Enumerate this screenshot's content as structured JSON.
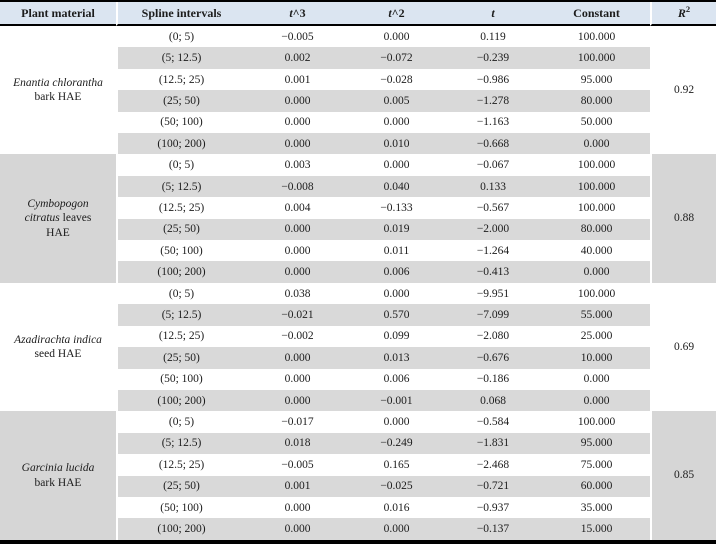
{
  "colors": {
    "header_bg": "#dbe5f1",
    "stripe_bg": "#d9d9d9",
    "section_bg": "#d6d6d6",
    "border": "#000000"
  },
  "header": {
    "col_plant": "Plant material",
    "col_spline": "Spline intervals",
    "col_t3_italic": "t",
    "col_t3_rest": "^3",
    "col_t2_italic": "t",
    "col_t2_rest": "^2",
    "col_t_italic": "t",
    "col_constant": "Constant",
    "col_r2_italic": "R",
    "col_r2_sup": "2"
  },
  "chart_data": {
    "type": "table",
    "title": "Spline interval polynomial coefficients per plant material",
    "columns": [
      "Plant material",
      "Spline intervals",
      "t^3",
      "t^2",
      "t",
      "Constant",
      "R2"
    ],
    "sections": [
      {
        "plant_italic": "Enantia chlorantha",
        "plant_rest": " bark HAE",
        "r2": "0.92",
        "rows": [
          [
            "(0; 5)",
            "−0.005",
            "0.000",
            "0.119",
            "100.000"
          ],
          [
            "(5; 12.5)",
            "0.002",
            "−0.072",
            "−0.239",
            "100.000"
          ],
          [
            "(12.5; 25)",
            "0.001",
            "−0.028",
            "−0.986",
            "95.000"
          ],
          [
            "(25; 50)",
            "0.000",
            "0.005",
            "−1.278",
            "80.000"
          ],
          [
            "(50; 100)",
            "0.000",
            "0.000",
            "−1.163",
            "50.000"
          ],
          [
            "(100; 200)",
            "0.000",
            "0.010",
            "−0.668",
            "0.000"
          ]
        ]
      },
      {
        "plant_italic": "Cymbopogon citratus",
        "plant_rest": " leaves HAE",
        "r2": "0.88",
        "rows": [
          [
            "(0; 5)",
            "0.003",
            "0.000",
            "−0.067",
            "100.000"
          ],
          [
            "(5; 12.5)",
            "−0.008",
            "0.040",
            "0.133",
            "100.000"
          ],
          [
            "(12.5; 25)",
            "0.004",
            "−0.133",
            "−0.567",
            "100.000"
          ],
          [
            "(25; 50)",
            "0.000",
            "0.019",
            "−2.000",
            "80.000"
          ],
          [
            "(50; 100)",
            "0.000",
            "0.011",
            "−1.264",
            "40.000"
          ],
          [
            "(100; 200)",
            "0.000",
            "0.006",
            "−0.413",
            "0.000"
          ]
        ]
      },
      {
        "plant_italic": "Azadirachta indica",
        "plant_rest": " seed HAE",
        "r2": "0.69",
        "rows": [
          [
            "(0; 5)",
            "0.038",
            "0.000",
            "−9.951",
            "100.000"
          ],
          [
            "(5; 12.5)",
            "−0.021",
            "0.570",
            "−7.099",
            "55.000"
          ],
          [
            "(12.5; 25)",
            "−0.002",
            "0.099",
            "−2.080",
            "25.000"
          ],
          [
            "(25; 50)",
            "0.000",
            "0.013",
            "−0.676",
            "10.000"
          ],
          [
            "(50; 100)",
            "0.000",
            "0.006",
            "−0.186",
            "0.000"
          ],
          [
            "(100; 200)",
            "0.000",
            "−0.001",
            "0.068",
            "0.000"
          ]
        ]
      },
      {
        "plant_italic": "Garcinia lucida",
        "plant_rest": " bark HAE",
        "r2": "0.85",
        "rows": [
          [
            "(0; 5)",
            "−0.017",
            "0.000",
            "−0.584",
            "100.000"
          ],
          [
            "(5; 12.5)",
            "0.018",
            "−0.249",
            "−1.831",
            "95.000"
          ],
          [
            "(12.5; 25)",
            "−0.005",
            "0.165",
            "−2.468",
            "75.000"
          ],
          [
            "(25; 50)",
            "0.001",
            "−0.025",
            "−0.721",
            "60.000"
          ],
          [
            "(50; 100)",
            "0.000",
            "0.016",
            "−0.937",
            "35.000"
          ],
          [
            "(100; 200)",
            "0.000",
            "0.000",
            "−0.137",
            "15.000"
          ]
        ]
      }
    ]
  }
}
